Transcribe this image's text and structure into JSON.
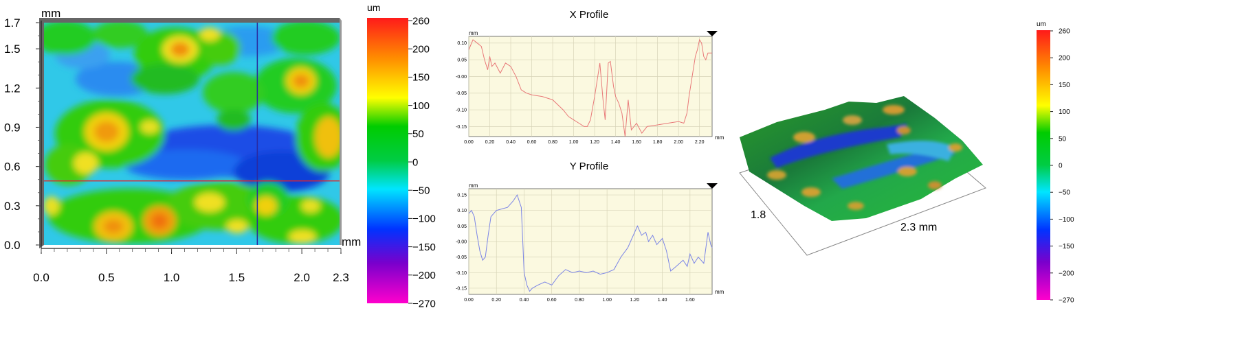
{
  "height_map": {
    "unit_y": "mm",
    "unit_x": "mm",
    "y_ticks": [
      "1.7",
      "1.5",
      "1.2",
      "0.9",
      "0.6",
      "0.3",
      "0.0"
    ],
    "x_ticks": [
      "0.0",
      "0.5",
      "1.0",
      "1.5",
      "2.0",
      "2.3"
    ],
    "x_range_mm": [
      0,
      2.3
    ],
    "y_range_mm": [
      0,
      1.7
    ],
    "crosshair_mm": {
      "x": 1.66,
      "y": 0.49
    },
    "crosshair_colors": {
      "vertical": "#2a2aa0",
      "horizontal": "#e0262a"
    }
  },
  "colorbar_left": {
    "unit": "um",
    "ticks": [
      "260",
      "200",
      "150",
      "100",
      "50",
      "0",
      "−50",
      "−100",
      "−150",
      "−200",
      "−270"
    ]
  },
  "colorbar_right": {
    "unit": "um",
    "ticks": [
      "260",
      "200",
      "150",
      "100",
      "50",
      "0",
      "−50",
      "−100",
      "−150",
      "−200",
      "−270"
    ]
  },
  "colormap": [
    "#ff1a1a",
    "#ff8c00",
    "#ffff00",
    "#00cc00",
    "#00e5ff",
    "#0033ff",
    "#7a00cc",
    "#ff00cc"
  ],
  "view3d": {
    "label_y": "1.8",
    "label_x": "2.3 mm"
  },
  "chart_data": [
    {
      "type": "line",
      "title": "X Profile",
      "xlabel": "mm",
      "ylabel": "mm",
      "xlim": [
        0,
        2.32
      ],
      "ylim": [
        -0.18,
        0.12
      ],
      "x_ticks": [
        "0.00",
        "0.20",
        "0.40",
        "0.60",
        "0.80",
        "1.00",
        "1.20",
        "1.40",
        "1.60",
        "1.80",
        "2.00",
        "2.20"
      ],
      "y_ticks": [
        "0.10",
        "0.05",
        "-0.00",
        "-0.05",
        "-0.10",
        "-0.15"
      ],
      "color": "#e87878",
      "x": [
        0.0,
        0.04,
        0.08,
        0.12,
        0.15,
        0.18,
        0.2,
        0.22,
        0.25,
        0.3,
        0.35,
        0.4,
        0.45,
        0.5,
        0.55,
        0.6,
        0.7,
        0.8,
        0.9,
        0.95,
        1.0,
        1.05,
        1.1,
        1.13,
        1.16,
        1.2,
        1.25,
        1.28,
        1.3,
        1.33,
        1.35,
        1.38,
        1.4,
        1.43,
        1.46,
        1.49,
        1.52,
        1.55,
        1.6,
        1.65,
        1.7,
        1.8,
        1.9,
        2.0,
        2.05,
        2.08,
        2.1,
        2.13,
        2.16,
        2.18,
        2.2,
        2.22,
        2.24,
        2.26,
        2.28,
        2.32
      ],
      "y": [
        0.08,
        0.11,
        0.1,
        0.09,
        0.05,
        0.02,
        0.06,
        0.03,
        0.04,
        0.01,
        0.04,
        0.03,
        0.0,
        -0.04,
        -0.05,
        -0.055,
        -0.06,
        -0.07,
        -0.1,
        -0.12,
        -0.13,
        -0.14,
        -0.15,
        -0.15,
        -0.13,
        -0.06,
        0.04,
        -0.07,
        -0.13,
        0.04,
        0.045,
        -0.03,
        -0.06,
        -0.08,
        -0.11,
        -0.18,
        -0.07,
        -0.16,
        -0.14,
        -0.17,
        -0.15,
        -0.145,
        -0.14,
        -0.135,
        -0.14,
        -0.11,
        -0.06,
        0.0,
        0.06,
        0.08,
        0.11,
        0.1,
        0.06,
        0.05,
        0.07,
        0.07
      ]
    },
    {
      "type": "line",
      "title": "Y Profile",
      "xlabel": "mm",
      "ylabel": "mm",
      "xlim": [
        0,
        1.76
      ],
      "ylim": [
        -0.17,
        0.17
      ],
      "x_ticks": [
        "0.00",
        "0.20",
        "0.40",
        "0.60",
        "0.80",
        "1.00",
        "1.20",
        "1.40",
        "1.60"
      ],
      "y_ticks": [
        "0.15",
        "0.10",
        "0.05",
        "-0.00",
        "-0.05",
        "-0.10",
        "-0.15"
      ],
      "color": "#7a84e6",
      "x": [
        0.0,
        0.02,
        0.04,
        0.06,
        0.08,
        0.1,
        0.12,
        0.14,
        0.16,
        0.18,
        0.2,
        0.24,
        0.28,
        0.32,
        0.35,
        0.38,
        0.4,
        0.42,
        0.44,
        0.46,
        0.5,
        0.55,
        0.6,
        0.65,
        0.7,
        0.75,
        0.8,
        0.85,
        0.9,
        0.95,
        1.0,
        1.05,
        1.1,
        1.15,
        1.18,
        1.22,
        1.25,
        1.28,
        1.3,
        1.33,
        1.36,
        1.4,
        1.43,
        1.46,
        1.5,
        1.55,
        1.58,
        1.6,
        1.63,
        1.66,
        1.7,
        1.73,
        1.75,
        1.76
      ],
      "y": [
        0.09,
        0.1,
        0.08,
        0.02,
        -0.03,
        -0.06,
        -0.05,
        0.02,
        0.08,
        0.09,
        0.1,
        0.105,
        0.11,
        0.13,
        0.15,
        0.11,
        -0.1,
        -0.14,
        -0.16,
        -0.15,
        -0.14,
        -0.13,
        -0.14,
        -0.11,
        -0.09,
        -0.1,
        -0.095,
        -0.1,
        -0.095,
        -0.105,
        -0.1,
        -0.09,
        -0.05,
        -0.02,
        0.01,
        0.05,
        0.02,
        0.03,
        0.0,
        0.02,
        -0.01,
        0.01,
        -0.03,
        -0.095,
        -0.08,
        -0.06,
        -0.08,
        -0.04,
        -0.07,
        -0.05,
        -0.07,
        0.03,
        -0.01,
        -0.02
      ]
    }
  ]
}
